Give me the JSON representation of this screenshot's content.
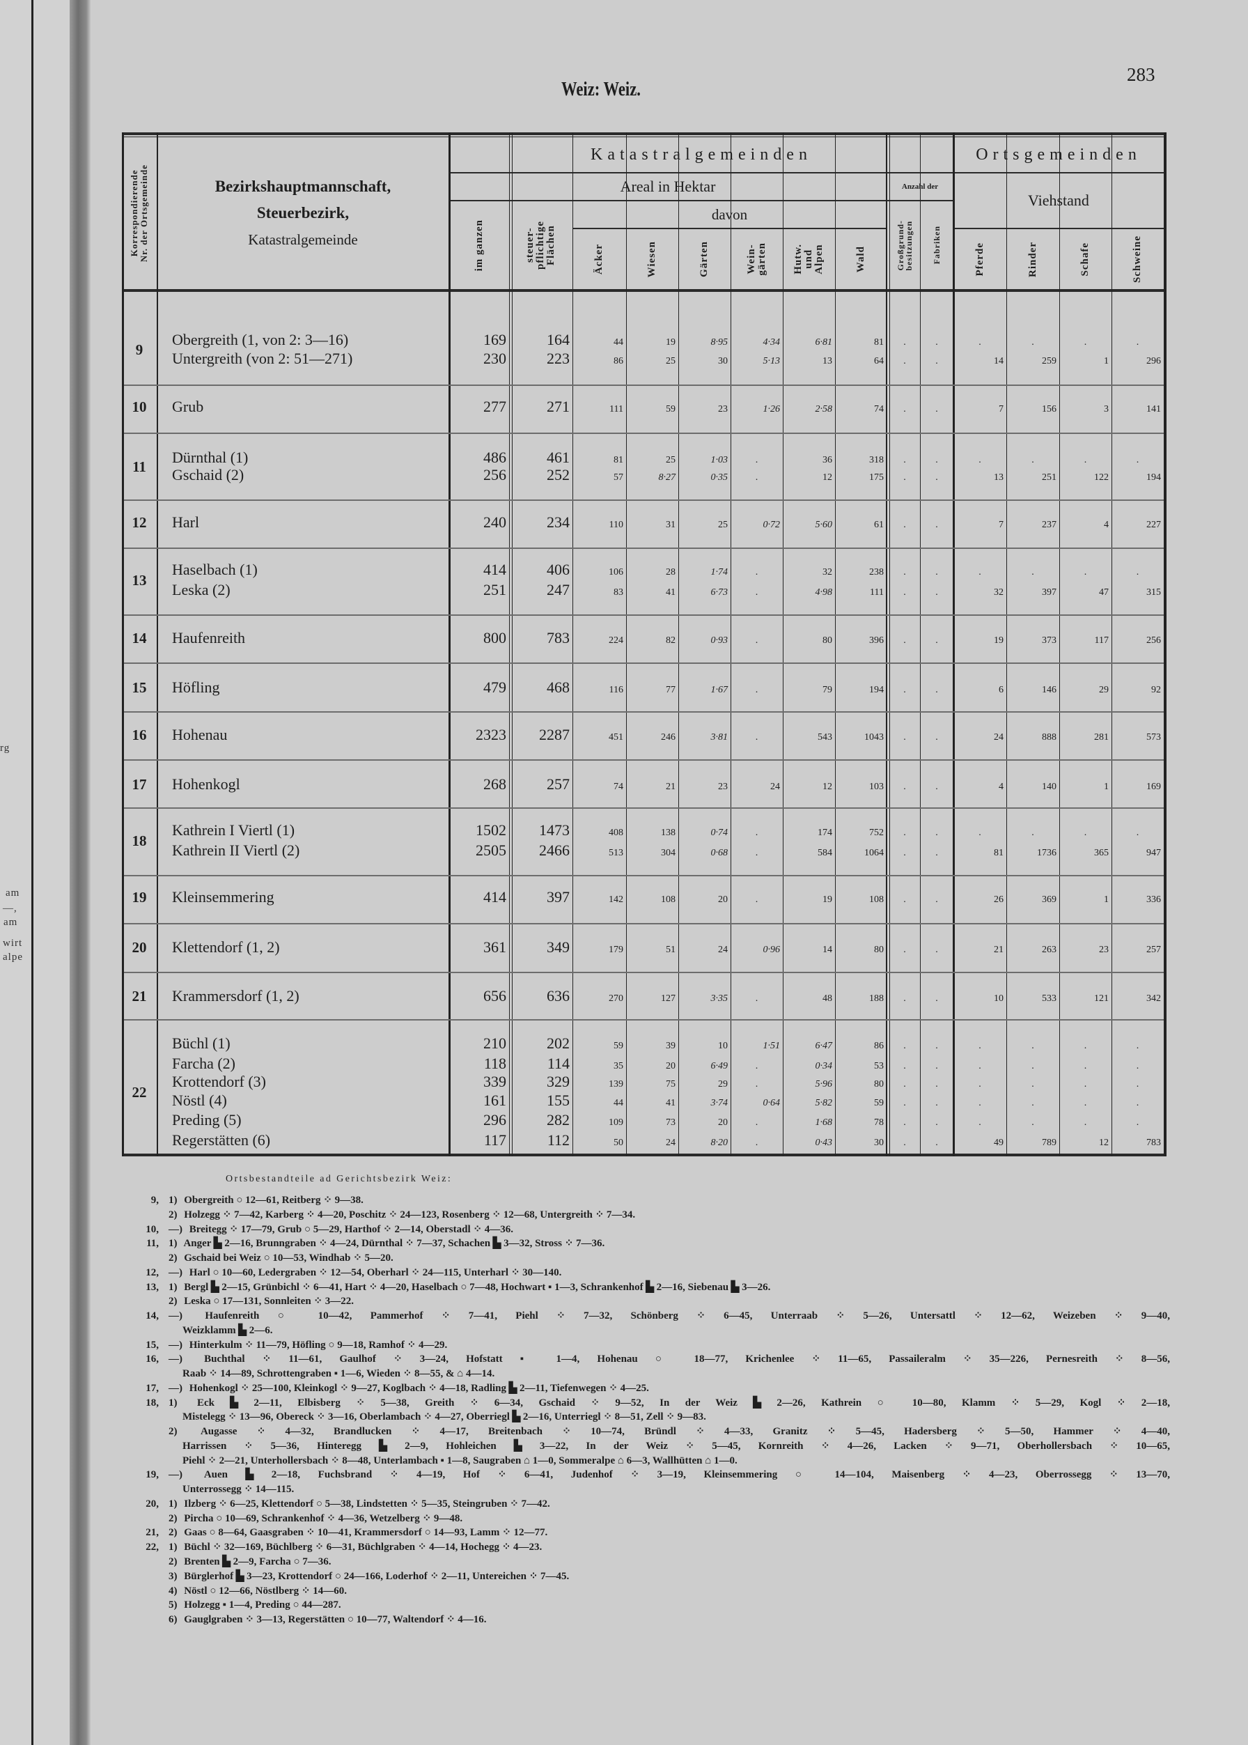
{
  "page_number": "283",
  "title": "Weiz: Weiz.",
  "margin_fragments": [
    "rg",
    "am",
    "—,",
    "am",
    "wirt",
    "alpe"
  ],
  "header": {
    "nr_line1": "Korrespondierende",
    "nr_line2": "Nr. der Ortsgemeinde",
    "main_line1": "Bezirkshauptmannschaft,",
    "main_line2": "Steuerbezirk,",
    "main_line3": "Katastralgemeinde",
    "katastral": "Katastralgemeinden",
    "orts": "Ortsgemeinden",
    "areal": "Areal in Hektar",
    "anzahl": "Anzahl der",
    "viehstand": "Viehstand",
    "davon": "davon",
    "columns": [
      "im ganzen",
      "steuer-\npflichtige\nFlächen",
      "Äcker",
      "Wiesen",
      "Gärten",
      "Wein-\ngärten",
      "Hutw.\nund\nAlpen",
      "Wald",
      "Großgrund-\nbesitzungen",
      "Fabriken",
      "Pferde",
      "Rinder",
      "Schafe",
      "Schweine"
    ]
  },
  "rows": [
    {
      "nr": "9",
      "lines": [
        {
          "name": "Obergreith (1, von 2: 3—16)",
          "cells": [
            "169",
            "164",
            "44",
            "19",
            "8·95",
            "4·34",
            "6·81",
            "81",
            ".",
            ".",
            ".",
            ".",
            ".",
            "."
          ]
        },
        {
          "name": "Untergreith (von 2: 51—271)",
          "cells": [
            "230",
            "223",
            "86",
            "25",
            "30",
            "5·13",
            "13",
            "64",
            ".",
            ".",
            "14",
            "259",
            "1",
            "296"
          ]
        }
      ]
    },
    {
      "nr": "10",
      "lines": [
        {
          "name": "Grub",
          "cells": [
            "277",
            "271",
            "111",
            "59",
            "23",
            "1·26",
            "2·58",
            "74",
            ".",
            ".",
            "7",
            "156",
            "3",
            "141"
          ]
        }
      ]
    },
    {
      "nr": "11",
      "lines": [
        {
          "name": "Dürnthal (1)",
          "cells": [
            "486",
            "461",
            "81",
            "25",
            "1·03",
            ".",
            "36",
            "318",
            ".",
            ".",
            ".",
            ".",
            ".",
            "."
          ]
        },
        {
          "name": "Gschaid (2)",
          "cells": [
            "256",
            "252",
            "57",
            "8·27",
            "0·35",
            ".",
            "12",
            "175",
            ".",
            ".",
            "13",
            "251",
            "122",
            "194"
          ]
        }
      ]
    },
    {
      "nr": "12",
      "lines": [
        {
          "name": "Harl",
          "cells": [
            "240",
            "234",
            "110",
            "31",
            "25",
            "0·72",
            "5·60",
            "61",
            ".",
            ".",
            "7",
            "237",
            "4",
            "227"
          ]
        }
      ]
    },
    {
      "nr": "13",
      "lines": [
        {
          "name": "Haselbach (1)",
          "cells": [
            "414",
            "406",
            "106",
            "28",
            "1·74",
            ".",
            "32",
            "238",
            ".",
            ".",
            ".",
            ".",
            ".",
            "."
          ]
        },
        {
          "name": "Leska (2)",
          "cells": [
            "251",
            "247",
            "83",
            "41",
            "6·73",
            ".",
            "4·98",
            "111",
            ".",
            ".",
            "32",
            "397",
            "47",
            "315"
          ]
        }
      ]
    },
    {
      "nr": "14",
      "lines": [
        {
          "name": "Haufenreith",
          "cells": [
            "800",
            "783",
            "224",
            "82",
            "0·93",
            ".",
            "80",
            "396",
            ".",
            ".",
            "19",
            "373",
            "117",
            "256"
          ]
        }
      ]
    },
    {
      "nr": "15",
      "lines": [
        {
          "name": "Höfling",
          "cells": [
            "479",
            "468",
            "116",
            "77",
            "1·67",
            ".",
            "79",
            "194",
            ".",
            ".",
            "6",
            "146",
            "29",
            "92"
          ]
        }
      ]
    },
    {
      "nr": "16",
      "lines": [
        {
          "name": "Hohenau",
          "cells": [
            "2323",
            "2287",
            "451",
            "246",
            "3·81",
            ".",
            "543",
            "1043",
            ".",
            ".",
            "24",
            "888",
            "281",
            "573"
          ]
        }
      ]
    },
    {
      "nr": "17",
      "lines": [
        {
          "name": "Hohenkogl",
          "cells": [
            "268",
            "257",
            "74",
            "21",
            "23",
            "24",
            "12",
            "103",
            ".",
            ".",
            "4",
            "140",
            "1",
            "169"
          ]
        }
      ]
    },
    {
      "nr": "18",
      "lines": [
        {
          "name": "Kathrein I Viertl (1)",
          "cells": [
            "1502",
            "1473",
            "408",
            "138",
            "0·74",
            ".",
            "174",
            "752",
            ".",
            ".",
            ".",
            ".",
            ".",
            "."
          ]
        },
        {
          "name": "Kathrein II Viertl (2)",
          "cells": [
            "2505",
            "2466",
            "513",
            "304",
            "0·68",
            ".",
            "584",
            "1064",
            ".",
            ".",
            "81",
            "1736",
            "365",
            "947"
          ]
        }
      ]
    },
    {
      "nr": "19",
      "lines": [
        {
          "name": "Kleinsemmering",
          "cells": [
            "414",
            "397",
            "142",
            "108",
            "20",
            ".",
            "19",
            "108",
            ".",
            ".",
            "26",
            "369",
            "1",
            "336"
          ]
        }
      ]
    },
    {
      "nr": "20",
      "lines": [
        {
          "name": "Klettendorf (1, 2)",
          "cells": [
            "361",
            "349",
            "179",
            "51",
            "24",
            "0·96",
            "14",
            "80",
            ".",
            ".",
            "21",
            "263",
            "23",
            "257"
          ]
        }
      ]
    },
    {
      "nr": "21",
      "lines": [
        {
          "name": "Krammersdorf (1, 2)",
          "cells": [
            "656",
            "636",
            "270",
            "127",
            "3·35",
            ".",
            "48",
            "188",
            ".",
            ".",
            "10",
            "533",
            "121",
            "342"
          ]
        }
      ]
    },
    {
      "nr": "22",
      "lines": [
        {
          "name": "Büchl (1)",
          "cells": [
            "210",
            "202",
            "59",
            "39",
            "10",
            "1·51",
            "6·47",
            "86",
            ".",
            ".",
            ".",
            ".",
            ".",
            "."
          ]
        },
        {
          "name": "Farcha (2)",
          "cells": [
            "118",
            "114",
            "35",
            "20",
            "6·49",
            ".",
            "0·34",
            "53",
            ".",
            ".",
            ".",
            ".",
            ".",
            "."
          ]
        },
        {
          "name": "Krottendorf (3)",
          "cells": [
            "339",
            "329",
            "139",
            "75",
            "29",
            ".",
            "5·96",
            "80",
            ".",
            ".",
            ".",
            ".",
            ".",
            "."
          ]
        },
        {
          "name": "Nöstl (4)",
          "cells": [
            "161",
            "155",
            "44",
            "41",
            "3·74",
            "0·64",
            "5·82",
            "59",
            ".",
            ".",
            ".",
            ".",
            ".",
            "."
          ]
        },
        {
          "name": "Preding (5)",
          "cells": [
            "296",
            "282",
            "109",
            "73",
            "20",
            ".",
            "1·68",
            "78",
            ".",
            ".",
            ".",
            ".",
            ".",
            "."
          ]
        },
        {
          "name": "Regerstätten (6)",
          "cells": [
            "117",
            "112",
            "50",
            "24",
            "8·20",
            ".",
            "0·43",
            "30",
            ".",
            ".",
            "49",
            "789",
            "12",
            "783"
          ]
        }
      ]
    }
  ],
  "footnotes": {
    "heading": "Ortsbestandteile ad Gerichtsbezirk Weiz:",
    "lines": [
      {
        "nr": "9,",
        "marker": "1)",
        "text": "Obergreith ○ 12—61, Reitberg ⁘ 9—38."
      },
      {
        "nr": "",
        "marker": "2)",
        "text": "Holzegg ⁘ 7—42, Karberg ⁘ 4—20, Poschitz ⁘ 24—123, Rosenberg ⁘ 12—68, Untergreith ⁘ 7—34."
      },
      {
        "nr": "10,",
        "marker": "—)",
        "text": "Breitegg ⁘ 17—79, Grub ○ 5—29, Harthof ⁘ 2—14, Oberstadl ⁘ 4—36."
      },
      {
        "nr": "11,",
        "marker": "1)",
        "text": "Anger ▙ 2—16, Brunngraben ⁘ 4—24, Dürnthal ⁘ 7—37, Schachen ▙ 3—32, Stross ⁘ 7—36."
      },
      {
        "nr": "",
        "marker": "2)",
        "text": "Gschaid bei Weiz ○ 10—53, Windhab ⁘ 5—20."
      },
      {
        "nr": "12,",
        "marker": "—)",
        "text": "Harl ○ 10—60, Ledergraben ⁘ 12—54, Oberharl ⁘ 24—115, Unterharl ⁘ 30—140."
      },
      {
        "nr": "13,",
        "marker": "1)",
        "text": "Bergl ▙ 2—15, Grünbichl ⁘ 6—41, Hart ⁘ 4—20, Haselbach ○ 7—48, Hochwart ▪ 1—3, Schrankenhof ▙ 2—16, Siebenau ▙ 3—26."
      },
      {
        "nr": "",
        "marker": "2)",
        "text": "Leska ○ 17—131, Sonnleiten ⁘ 3—22."
      },
      {
        "nr": "14,",
        "marker": "—)",
        "text": "Haufenreith ○ 10—42, Pammerhof ⁘ 7—41, Piehl ⁘ 7—32, Schönberg ⁘ 6—45, Unterraab ⁘ 5—26, Untersattl ⁘ 12—62, Weizeben ⁘ 9—40,"
      },
      {
        "nr": "",
        "marker": "",
        "text": "Weizklamm ▙ 2—6."
      },
      {
        "nr": "15,",
        "marker": "—)",
        "text": "Hinterkulm ⁘ 11—79, Höfling ○ 9—18, Ramhof ⁘ 4—29."
      },
      {
        "nr": "16,",
        "marker": "—)",
        "text": "Buchthal ⁘ 11—61, Gaulhof ⁘ 3—24, Hofstatt ▪ 1—4, Hohenau ○ 18—77, Krichenlee ⁘ 11—65, Passaileralm ⁘ 35—226, Pernesreith ⁘ 8—56,"
      },
      {
        "nr": "",
        "marker": "",
        "text": "Raab ⁘ 14—89, Schrottengraben ▪ 1—6, Wieden ⁘ 8—55, & ⌂ 4—14."
      },
      {
        "nr": "17,",
        "marker": "—)",
        "text": "Hohenkogl ⁘ 25—100, Kleinkogl ⁘ 9—27, Koglbach ⁘ 4—18, Radling ▙ 2—11, Tiefenwegen ⁘ 4—25."
      },
      {
        "nr": "18,",
        "marker": "1)",
        "text": "Eck ▙ 2—11, Elbisberg ⁘ 5—38, Greith ⁘ 6—34, Gschaid ⁘ 9—52, In der Weiz ▙ 2—26, Kathrein ○ 10—80, Klamm ⁘ 5—29, Kogl ⁘ 2—18,"
      },
      {
        "nr": "",
        "marker": "",
        "text": "Mistelegg ⁘ 13—96, Obereck ⁘ 3—16, Oberlambach ⁘ 4—27, Oberriegl ▙ 2—16, Unterriegl ⁘ 8—51, Zell ⁘ 9—83."
      },
      {
        "nr": "",
        "marker": "2)",
        "text": "Augasse ⁘ 4—32, Brandlucken ⁘ 4—17, Breitenbach ⁘ 10—74, Bründl ⁘ 4—33, Granitz ⁘ 5—45, Hadersberg ⁘ 5—50, Hammer ⁘ 4—40,"
      },
      {
        "nr": "",
        "marker": "",
        "text": "Harrissen ⁘ 5—36, Hinteregg ▙ 2—9, Hohleichen ▙ 3—22, In der Weiz ⁘ 5—45, Kornreith ⁘ 4—26, Lacken ⁘ 9—71, Oberhollersbach ⁘ 10—65,"
      },
      {
        "nr": "",
        "marker": "",
        "text": "Piehl ⁘ 2—21, Unterhollersbach ⁘ 8—48, Unterlambach ▪ 1—8, Saugraben ⌂ 1—0, Sommeralpe ⌂ 6—3, Wallhütten ⌂ 1—0."
      },
      {
        "nr": "19,",
        "marker": "—)",
        "text": "Auen ▙ 2—18, Fuchsbrand ⁘ 4—19, Hof ⁘ 6—41, Judenhof ⁘ 3—19, Kleinsemmering ○ 14—104, Maisenberg ⁘ 4—23, Oberrossegg ⁘ 13—70,"
      },
      {
        "nr": "",
        "marker": "",
        "text": "Unterrossegg ⁘ 14—115."
      },
      {
        "nr": "20,",
        "marker": "1)",
        "text": "Ilzberg ⁘ 6—25, Klettendorf ○ 5—38, Lindstetten ⁘ 5—35, Steingruben ⁘ 7—42."
      },
      {
        "nr": "",
        "marker": "2)",
        "text": "Pircha ○ 10—69, Schrankenhof ⁘ 4—36, Wetzelberg ⁘ 9—48."
      },
      {
        "nr": "21,",
        "marker": "2)",
        "text": "Gaas ○ 8—64, Gaasgraben ⁘ 10—41, Krammersdorf ○ 14—93, Lamm ⁘ 12—77."
      },
      {
        "nr": "22,",
        "marker": "1)",
        "text": "Büchl ⁘ 32—169, Büchlberg ⁘ 6—31, Büchlgraben ⁘ 4—14, Hochegg ⁘ 4—23."
      },
      {
        "nr": "",
        "marker": "2)",
        "text": "Brenten ▙ 2—9, Farcha ○ 7—36."
      },
      {
        "nr": "",
        "marker": "3)",
        "text": "Bürglerhof ▙ 3—23, Krottendorf ○ 24—166, Loderhof ⁘ 2—11, Untereichen ⁘ 7—45."
      },
      {
        "nr": "",
        "marker": "4)",
        "text": "Nöstl ○ 12—66, Nöstlberg ⁘ 14—60."
      },
      {
        "nr": "",
        "marker": "5)",
        "text": "Holzegg ▪ 1—4, Preding ○ 44—287."
      },
      {
        "nr": "",
        "marker": "6)",
        "text": "Gauglgraben ⁘ 3—13, Regerstätten ○ 10—77, Waltendorf ⁘ 4—16."
      }
    ]
  }
}
